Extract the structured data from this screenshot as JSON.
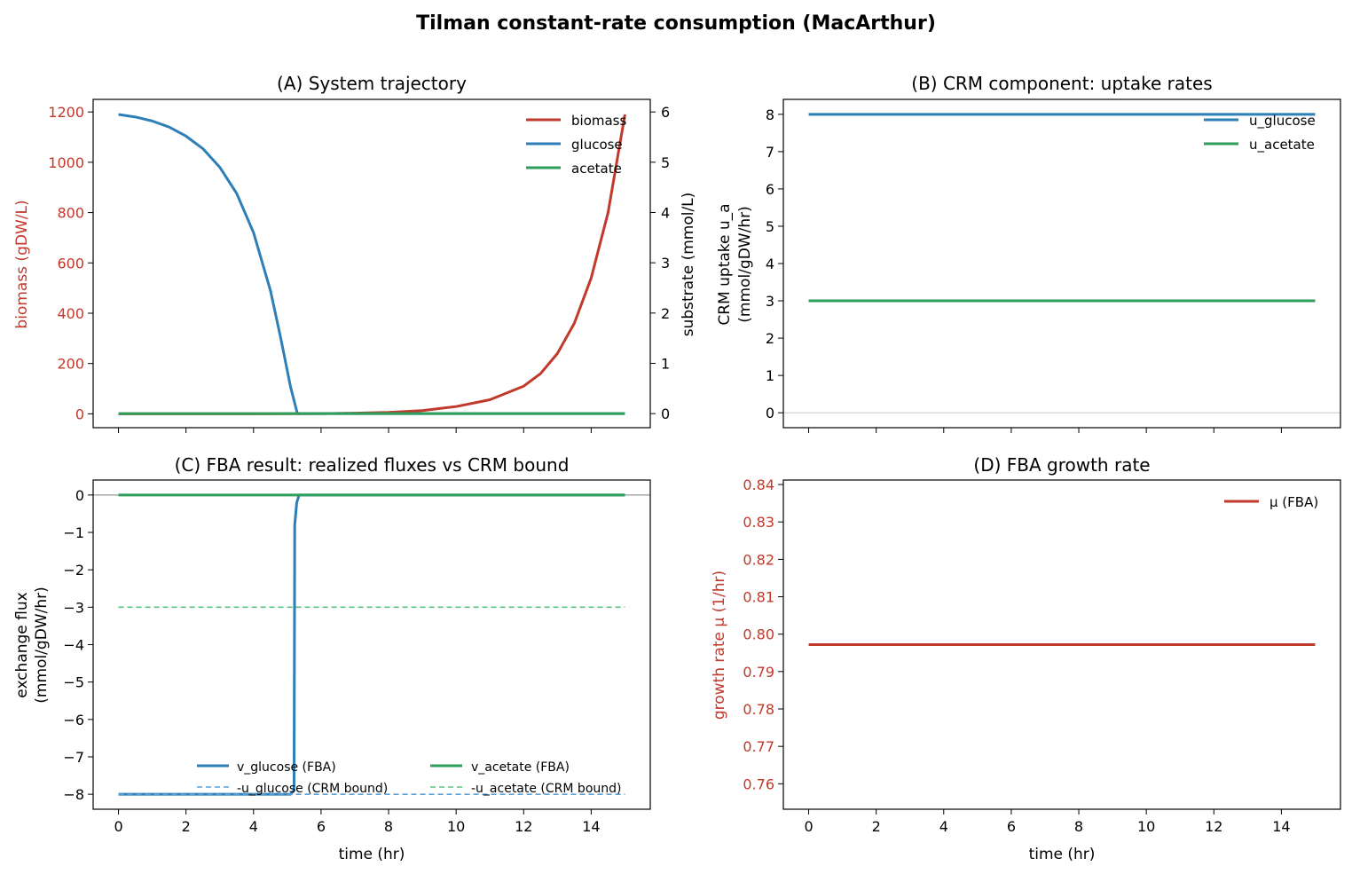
{
  "figure": {
    "title": "Tilman constant-rate consumption (MacArthur)"
  },
  "colors": {
    "biomass": "#c0392b",
    "glucose": "#2e7fb8",
    "acetate": "#2e9e5b",
    "glucose_light": "#5a9fd4",
    "acetate_light": "#5bc384",
    "zero_line": "#999999",
    "zero_line_light": "#cccccc"
  },
  "chart_data": [
    {
      "id": "A",
      "type": "line",
      "title": "(A) System trajectory",
      "xlabel": "",
      "ylabel": "biomass (gDW/L)",
      "ylabel_right": "substrate (mmol/L)",
      "xlim": [
        -0.75,
        15.75
      ],
      "ylim": [
        -55,
        1250
      ],
      "ylim_right": [
        -0.28,
        6.25
      ],
      "xticks": [
        0,
        2,
        4,
        6,
        8,
        10,
        12,
        14
      ],
      "xticklabels": [
        "",
        "",
        "",
        "",
        "",
        "",
        "",
        ""
      ],
      "yticks": [
        0,
        200,
        400,
        600,
        800,
        1000,
        1200
      ],
      "yticklabels": [
        "0",
        "200",
        "400",
        "600",
        "800",
        "1000",
        "1200"
      ],
      "yticks_right": [
        0,
        1,
        2,
        3,
        4,
        5,
        6
      ],
      "yticklabels_right": [
        "0",
        "1",
        "2",
        "3",
        "4",
        "5",
        "6"
      ],
      "legend": {
        "position": "top-right",
        "entries": [
          "biomass",
          "glucose",
          "acetate"
        ]
      },
      "series": [
        {
          "name": "biomass",
          "axis": "left",
          "color_key": "biomass",
          "x": [
            0,
            1,
            2,
            3,
            4,
            5,
            6,
            7,
            8,
            9,
            10,
            11,
            12,
            12.5,
            13,
            13.5,
            14,
            14.5,
            15
          ],
          "y": [
            0.01,
            0.02,
            0.05,
            0.11,
            0.24,
            0.54,
            1.2,
            2.7,
            5.9,
            13,
            29,
            56,
            110,
            160,
            240,
            360,
            540,
            800,
            1190
          ]
        },
        {
          "name": "glucose",
          "axis": "right",
          "color_key": "glucose",
          "x": [
            0,
            0.5,
            1,
            1.5,
            2,
            2.5,
            3,
            3.5,
            4,
            4.5,
            4.8,
            5.1,
            5.3,
            6,
            8,
            10,
            12,
            14,
            15
          ],
          "y": [
            5.95,
            5.9,
            5.82,
            5.7,
            5.52,
            5.27,
            4.9,
            4.38,
            3.6,
            2.45,
            1.52,
            0.52,
            0,
            0,
            0,
            0,
            0,
            0,
            0
          ]
        },
        {
          "name": "acetate",
          "axis": "right",
          "color_key": "acetate",
          "x": [
            0,
            15
          ],
          "y": [
            0,
            0
          ]
        }
      ]
    },
    {
      "id": "B",
      "type": "line",
      "title": "(B) CRM component: uptake rates",
      "xlabel": "",
      "ylabel": "CRM uptake u_a",
      "ylabel_line2": "(mmol/gDW/hr)",
      "xlim": [
        -0.75,
        15.75
      ],
      "ylim": [
        -0.4,
        8.4
      ],
      "xticks": [
        0,
        2,
        4,
        6,
        8,
        10,
        12,
        14
      ],
      "xticklabels": [
        "",
        "",
        "",
        "",
        "",
        "",
        "",
        ""
      ],
      "yticks": [
        0,
        1,
        2,
        3,
        4,
        5,
        6,
        7,
        8
      ],
      "yticklabels": [
        "0",
        "1",
        "2",
        "3",
        "4",
        "5",
        "6",
        "7",
        "8"
      ],
      "legend": {
        "position": "top-right",
        "entries": [
          "u_glucose",
          "u_acetate"
        ]
      },
      "series": [
        {
          "name": "u_glucose",
          "color_key": "glucose",
          "x": [
            0,
            15
          ],
          "y": [
            8,
            8
          ]
        },
        {
          "name": "u_acetate",
          "color_key": "acetate",
          "x": [
            0,
            15
          ],
          "y": [
            3,
            3
          ]
        }
      ]
    },
    {
      "id": "C",
      "type": "line",
      "title": "(C) FBA result: realized fluxes vs CRM bound",
      "xlabel": "time (hr)",
      "ylabel": "exchange flux",
      "ylabel_line2": "(mmol/gDW/hr)",
      "xlim": [
        -0.75,
        15.75
      ],
      "ylim": [
        -8.4,
        0.4
      ],
      "xticks": [
        0,
        2,
        4,
        6,
        8,
        10,
        12,
        14
      ],
      "xticklabels": [
        "0",
        "2",
        "4",
        "6",
        "8",
        "10",
        "12",
        "14"
      ],
      "yticks": [
        0,
        -1,
        -2,
        -3,
        -4,
        -5,
        -6,
        -7,
        -8
      ],
      "yticklabels": [
        "0",
        "−1",
        "−2",
        "−3",
        "−4",
        "−5",
        "−6",
        "−7",
        "−8"
      ],
      "legend": {
        "position": "lower-center",
        "entries": [
          "v_glucose (FBA)",
          "v_acetate (FBA)",
          "-u_glucose (CRM bound)",
          "-u_acetate (CRM bound)"
        ]
      },
      "series": [
        {
          "name": "v_glucose (FBA)",
          "color_key": "glucose",
          "style": "solid",
          "x": [
            0,
            5.1,
            5.2,
            5.22,
            5.28,
            5.35,
            15
          ],
          "y": [
            -8,
            -8,
            -7.9,
            -0.8,
            -0.2,
            0,
            0
          ]
        },
        {
          "name": "v_acetate (FBA)",
          "color_key": "acetate",
          "style": "solid",
          "x": [
            0,
            15
          ],
          "y": [
            0,
            0
          ]
        },
        {
          "name": "-u_glucose (CRM bound)",
          "color_key": "glucose_light",
          "style": "dashed",
          "x": [
            0,
            15
          ],
          "y": [
            -8,
            -8
          ]
        },
        {
          "name": "-u_acetate (CRM bound)",
          "color_key": "acetate_light",
          "style": "dashed",
          "x": [
            0,
            15
          ],
          "y": [
            -3,
            -3
          ]
        }
      ]
    },
    {
      "id": "D",
      "type": "line",
      "title": "(D) FBA growth rate",
      "xlabel": "time (hr)",
      "ylabel": "growth rate μ (1/hr)",
      "xlim": [
        -0.75,
        15.75
      ],
      "ylim": [
        0.7532,
        0.8412
      ],
      "xticks": [
        0,
        2,
        4,
        6,
        8,
        10,
        12,
        14
      ],
      "xticklabels": [
        "0",
        "2",
        "4",
        "6",
        "8",
        "10",
        "12",
        "14"
      ],
      "yticks": [
        0.76,
        0.77,
        0.78,
        0.79,
        0.8,
        0.81,
        0.82,
        0.83,
        0.84
      ],
      "yticklabels": [
        "0.76",
        "0.77",
        "0.78",
        "0.79",
        "0.80",
        "0.81",
        "0.82",
        "0.83",
        "0.84"
      ],
      "legend": {
        "position": "top-right",
        "entries": [
          "μ (FBA)"
        ]
      },
      "series": [
        {
          "name": "μ (FBA)",
          "color_key": "biomass",
          "x": [
            0,
            15
          ],
          "y": [
            0.7972,
            0.7972
          ]
        }
      ]
    }
  ]
}
